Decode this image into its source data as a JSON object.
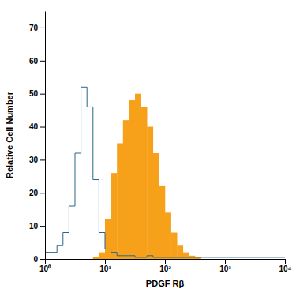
{
  "chart_data": {
    "type": "histogram",
    "x_label": "PDGF Rβ",
    "y_label": "Relative Cell Number",
    "log": "x",
    "bins": [
      1,
      1.259,
      1.585,
      1.995,
      2.512,
      3.162,
      3.981,
      5.012,
      6.31,
      7.943,
      10,
      12.59,
      15.85,
      19.95,
      25.12,
      31.62,
      39.81,
      50.12,
      63.1,
      79.43,
      100,
      125.9,
      158.5,
      199.5,
      251.2,
      316.2,
      398.1,
      501.2,
      631,
      794.3,
      1000,
      1259,
      1585,
      1995,
      2512,
      3162,
      3981,
      5012,
      6310,
      7943,
      10000
    ],
    "series": [
      {
        "type": "bar",
        "color": "#f7a11a",
        "values": [
          0,
          0,
          0,
          0,
          0,
          0,
          0,
          0,
          0.5,
          2,
          12,
          26,
          35,
          42,
          48,
          50,
          46,
          40,
          32,
          22,
          14,
          8,
          4,
          2,
          1,
          0.5,
          0,
          0,
          0,
          0,
          0,
          0,
          0,
          0,
          0,
          0,
          0,
          0,
          0,
          0
        ]
      },
      {
        "type": "step",
        "color": "#2a6589",
        "values": [
          2,
          2,
          4,
          8,
          16,
          32,
          52,
          46,
          24,
          8,
          3,
          2,
          1,
          1,
          1,
          0.5,
          0.5,
          1,
          0.5,
          0.5,
          0.5,
          0.5,
          0.5,
          0.5,
          0.5,
          0.5,
          0.5,
          0.5,
          0.5,
          0.5,
          0.5,
          0.5,
          0.5,
          0.5,
          0.5,
          0.5,
          0.5,
          0.5,
          0.5,
          0.5
        ]
      }
    ],
    "xlim": [
      1,
      10000
    ],
    "xticks": [
      {
        "value": 1,
        "label": "10⁰"
      },
      {
        "value": 10,
        "label": "10¹"
      },
      {
        "value": 100,
        "label": "10²"
      },
      {
        "value": 1000,
        "label": "10³"
      },
      {
        "value": 10000,
        "label": "10⁴"
      }
    ],
    "ylim": [
      0,
      75
    ],
    "yticks": [
      0,
      10,
      20,
      30,
      40,
      50,
      60,
      70
    ]
  }
}
